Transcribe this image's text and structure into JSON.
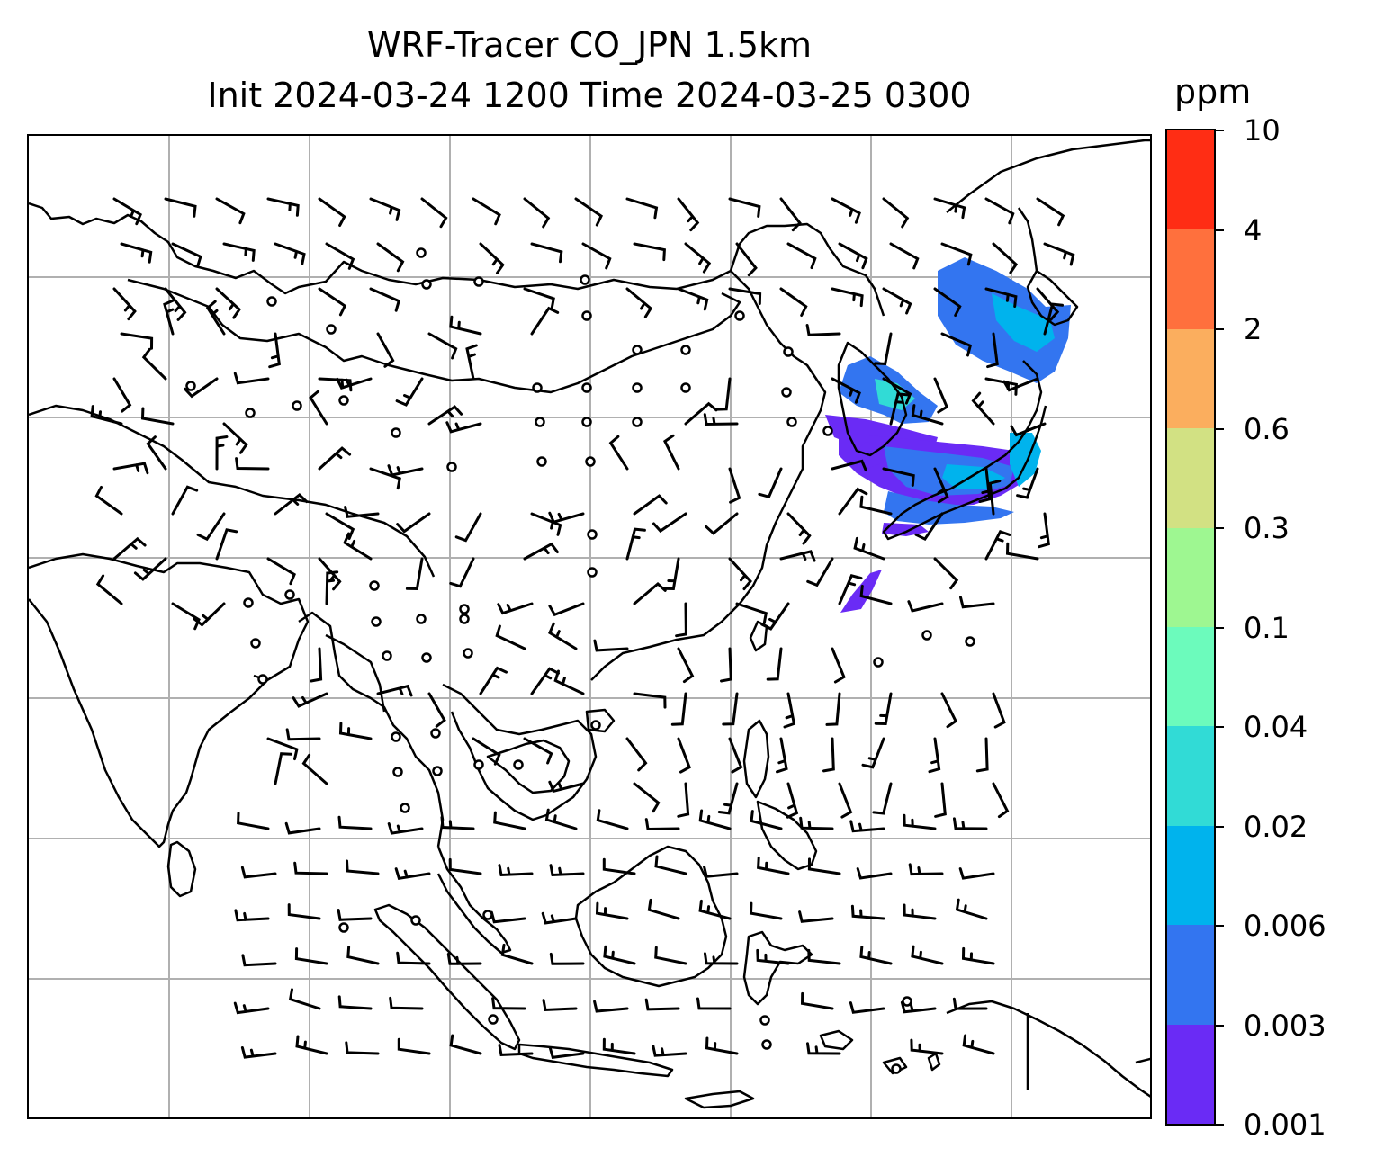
{
  "title": {
    "line1": "WRF-Tracer CO_JPN 1.5km",
    "line2": "Init 2024-03-24 1200 Time 2024-03-25 0300"
  },
  "colorbar": {
    "unit": "ppm",
    "ticks": [
      "0.001",
      "0.003",
      "0.006",
      "0.02",
      "0.04",
      "0.1",
      "0.3",
      "0.6",
      "2",
      "4",
      "10"
    ],
    "colors_bottom_to_top": [
      "#6a2bf5",
      "#3375f0",
      "#00b3ed",
      "#31dbd6",
      "#6cfbbc",
      "#9ef791",
      "#d2e183",
      "#fbae5e",
      "#ff703d",
      "#ff2d14"
    ]
  },
  "map": {
    "land_color": "#ffffff",
    "coast_color": "#000000",
    "grid_color": "#b0b0b0",
    "gridlines": true,
    "barb_color": "#000000",
    "plume_colors": [
      "#6a2bf5",
      "#3375f0",
      "#00b3ed",
      "#31dbd6"
    ]
  }
}
